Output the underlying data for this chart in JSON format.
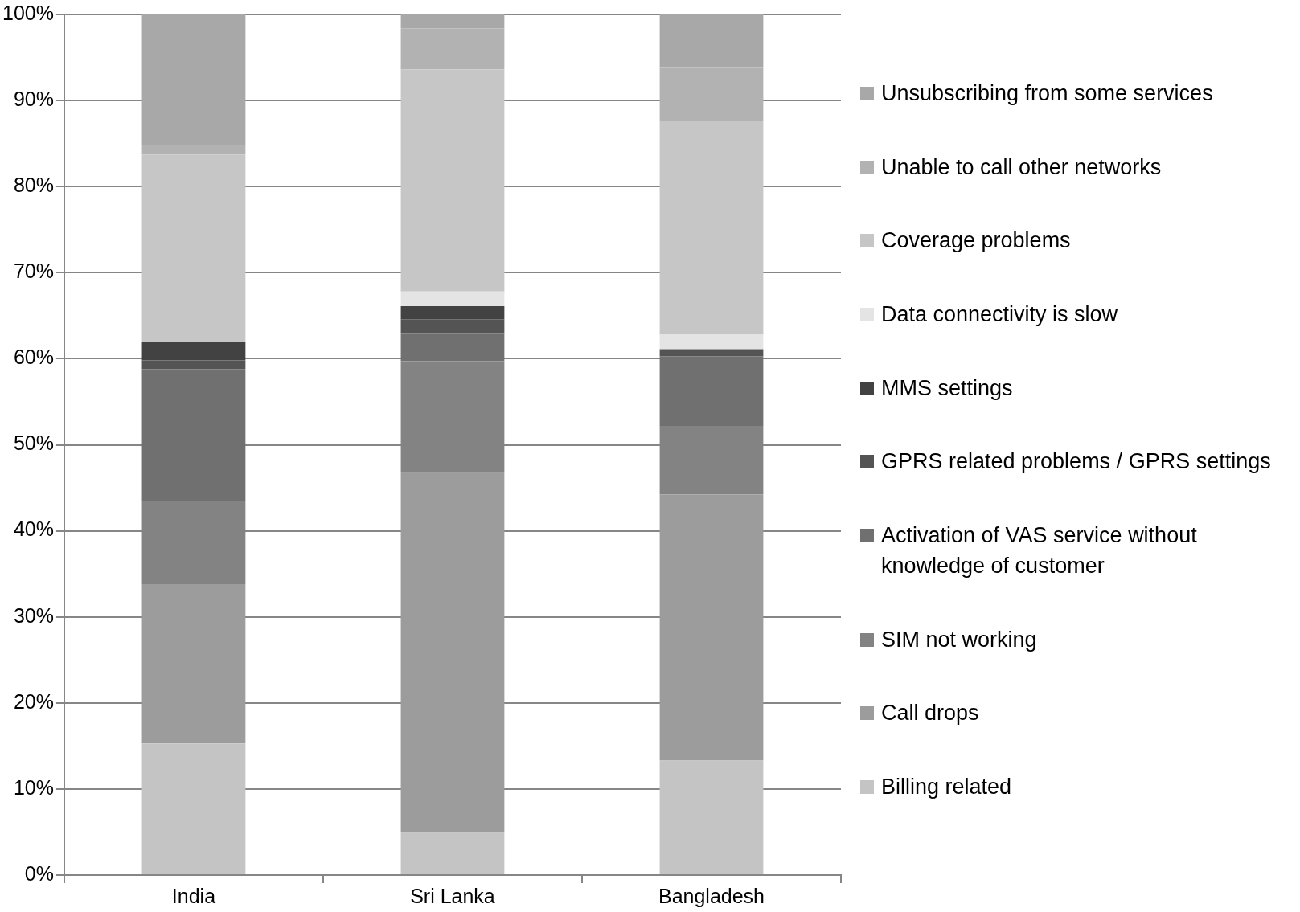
{
  "chart_data": {
    "type": "bar",
    "stacked": true,
    "categories": [
      "India",
      "Sri Lanka",
      "Bangladesh"
    ],
    "series": [
      {
        "name": "Billing related",
        "color": "#c4c4c4",
        "values": [
          15.3,
          4.9,
          13.3
        ]
      },
      {
        "name": "Call drops",
        "color": "#9c9c9c",
        "values": [
          18.5,
          41.8,
          30.9
        ]
      },
      {
        "name": "SIM not working",
        "color": "#838383",
        "values": [
          9.7,
          13.0,
          8.0
        ]
      },
      {
        "name": "Activation of VAS service without knowledge of customer",
        "color": "#707070",
        "values": [
          15.3,
          3.2,
          8.1
        ]
      },
      {
        "name": "GPRS related problems / GPRS settings",
        "color": "#545454",
        "values": [
          1.0,
          1.7,
          0.8
        ]
      },
      {
        "name": "MMS settings",
        "color": "#424242",
        "values": [
          2.1,
          1.5,
          0
        ]
      },
      {
        "name": "Data connectivity is slow",
        "color": "#e4e4e4",
        "values": [
          0,
          1.7,
          1.7
        ]
      },
      {
        "name": "Coverage problems",
        "color": "#c6c6c6",
        "values": [
          21.8,
          25.8,
          24.8
        ]
      },
      {
        "name": "Unable to call other networks",
        "color": "#b2b2b2",
        "values": [
          1.1,
          4.8,
          6.2
        ]
      },
      {
        "name": "Unsubscribing from some services",
        "color": "#a8a8a8",
        "values": [
          15.2,
          1.6,
          6.2
        ]
      }
    ],
    "ylim": [
      0,
      100
    ],
    "yticks": [
      {
        "value": 0,
        "label": "0%"
      },
      {
        "value": 10,
        "label": "10%"
      },
      {
        "value": 20,
        "label": "20%"
      },
      {
        "value": 30,
        "label": "30%"
      },
      {
        "value": 40,
        "label": "40%"
      },
      {
        "value": 50,
        "label": "50%"
      },
      {
        "value": 60,
        "label": "60%"
      },
      {
        "value": 70,
        "label": "70%"
      },
      {
        "value": 80,
        "label": "80%"
      },
      {
        "value": 90,
        "label": "90%"
      },
      {
        "value": 100,
        "label": "100%"
      }
    ],
    "grid": "y",
    "legend": "right"
  }
}
